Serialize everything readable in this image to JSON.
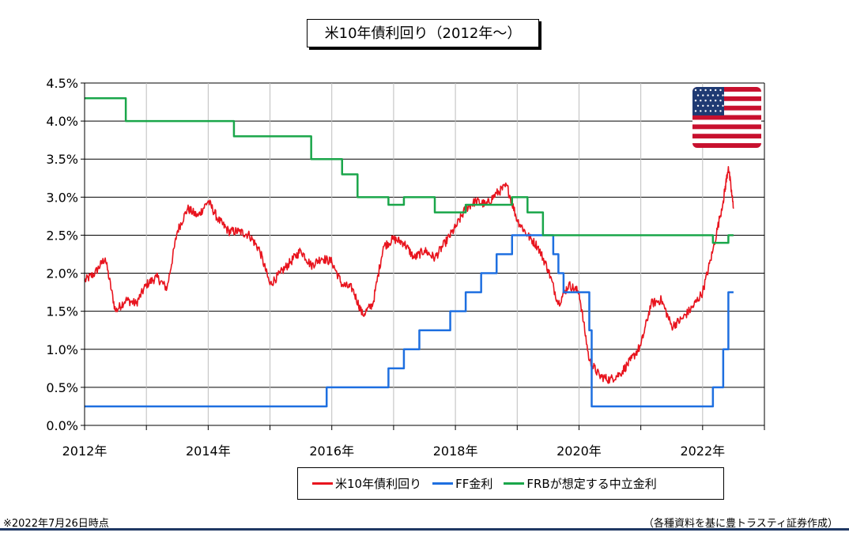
{
  "chart_data": {
    "type": "line",
    "title": "米10年債利回り（2012年～）",
    "xlim": [
      "2012-01-01",
      "2023-01-01"
    ],
    "ylim": [
      0,
      4.5
    ],
    "y_ticks": [
      "0.0%",
      "0.5%",
      "1.0%",
      "1.5%",
      "2.0%",
      "2.5%",
      "3.0%",
      "3.5%",
      "4.0%",
      "4.5%"
    ],
    "x_ticks": [
      "2012年",
      "2014年",
      "2016年",
      "2018年",
      "2020年",
      "2022年"
    ],
    "x_tick_values": [
      2012,
      2014,
      2016,
      2018,
      2020,
      2022
    ],
    "grid": true,
    "legend_position": "bottom",
    "series": [
      {
        "name": "米10年債利回り",
        "color": "#e8141e",
        "style": "line",
        "x": [
          "2012-01",
          "2012-03",
          "2012-05",
          "2012-07",
          "2012-09",
          "2012-11",
          "2013-01",
          "2013-03",
          "2013-05",
          "2013-07",
          "2013-09",
          "2013-11",
          "2014-01",
          "2014-03",
          "2014-05",
          "2014-07",
          "2014-09",
          "2014-11",
          "2015-01",
          "2015-03",
          "2015-05",
          "2015-07",
          "2015-09",
          "2015-11",
          "2016-01",
          "2016-03",
          "2016-05",
          "2016-07",
          "2016-09",
          "2016-11",
          "2017-01",
          "2017-03",
          "2017-05",
          "2017-07",
          "2017-09",
          "2017-11",
          "2018-01",
          "2018-03",
          "2018-05",
          "2018-07",
          "2018-09",
          "2018-11",
          "2019-01",
          "2019-03",
          "2019-05",
          "2019-07",
          "2019-09",
          "2019-11",
          "2020-01",
          "2020-03",
          "2020-05",
          "2020-07",
          "2020-09",
          "2020-11",
          "2021-01",
          "2021-03",
          "2021-05",
          "2021-07",
          "2021-09",
          "2021-11",
          "2022-01",
          "2022-03",
          "2022-05",
          "2022-06",
          "2022-07"
        ],
        "values": [
          1.9,
          2.0,
          2.2,
          1.5,
          1.65,
          1.6,
          1.85,
          1.95,
          1.8,
          2.55,
          2.85,
          2.75,
          2.95,
          2.7,
          2.55,
          2.55,
          2.5,
          2.3,
          1.85,
          2.0,
          2.15,
          2.3,
          2.1,
          2.2,
          2.15,
          1.85,
          1.8,
          1.45,
          1.6,
          2.35,
          2.45,
          2.4,
          2.2,
          2.3,
          2.2,
          2.4,
          2.6,
          2.85,
          2.95,
          2.9,
          3.05,
          3.15,
          2.7,
          2.5,
          2.35,
          2.05,
          1.6,
          1.85,
          1.75,
          0.85,
          0.65,
          0.6,
          0.68,
          0.85,
          1.05,
          1.6,
          1.65,
          1.3,
          1.4,
          1.55,
          1.75,
          2.3,
          2.95,
          3.4,
          2.85
        ]
      },
      {
        "name": "FF金利",
        "color": "#1e6fe0",
        "style": "step",
        "x": [
          "2012-01",
          "2015-12",
          "2016-12",
          "2017-03",
          "2017-06",
          "2017-12",
          "2018-03",
          "2018-06",
          "2018-09",
          "2018-12",
          "2019-08",
          "2019-09",
          "2019-10",
          "2020-03",
          "2020-03-15",
          "2022-03",
          "2022-05",
          "2022-06",
          "2022-07"
        ],
        "values": [
          0.25,
          0.5,
          0.75,
          1.0,
          1.25,
          1.5,
          1.75,
          2.0,
          2.25,
          2.5,
          2.25,
          2.0,
          1.75,
          1.25,
          0.25,
          0.5,
          1.0,
          1.75,
          1.75
        ]
      },
      {
        "name": "FRBが想定する中立金利",
        "color": "#1aa64a",
        "style": "step",
        "x": [
          "2012-01",
          "2012-09",
          "2014-06",
          "2015-09",
          "2016-03",
          "2016-06",
          "2016-12",
          "2017-03",
          "2017-09",
          "2018-03",
          "2018-06",
          "2018-12",
          "2019-03",
          "2019-06",
          "2022-03",
          "2022-06",
          "2022-07"
        ],
        "values": [
          4.3,
          4.0,
          3.8,
          3.5,
          3.3,
          3.0,
          2.9,
          3.0,
          2.8,
          2.9,
          2.9,
          3.0,
          2.8,
          2.5,
          2.4,
          2.5,
          2.5
        ]
      }
    ]
  },
  "note": "※2022年7月26日時点",
  "source": "（各種資料を基に豊トラスティ証券作成）",
  "flag": "us-flag-icon"
}
